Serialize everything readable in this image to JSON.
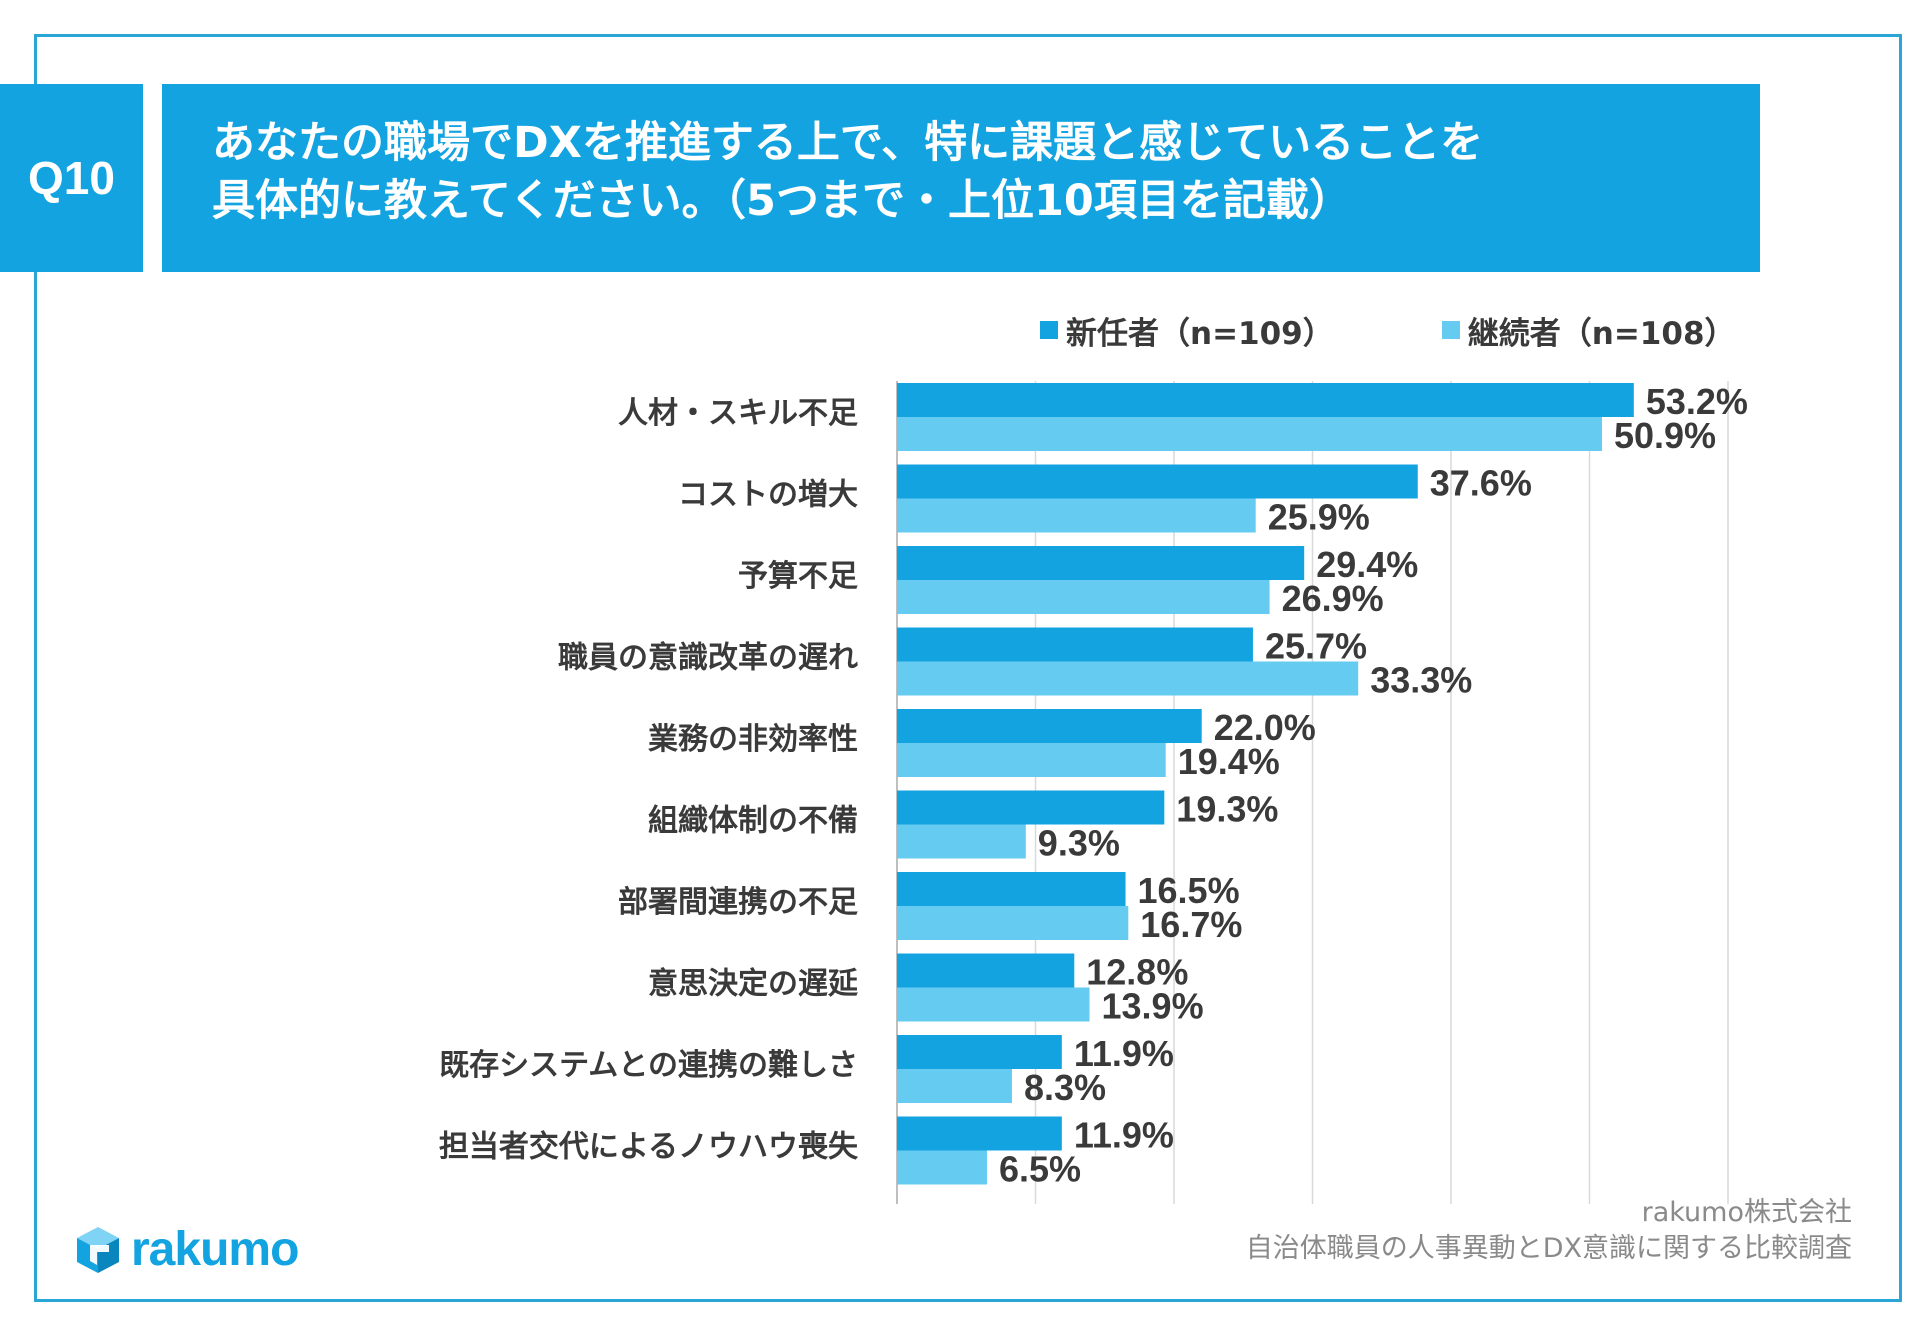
{
  "question": {
    "number": "Q10",
    "title_line1": "あなたの職場でDXを推進する上で、特に課題と感じていることを",
    "title_line2": "具体的に教えてください。（5つまで・上位10項目を記載）"
  },
  "legend": {
    "series1": "新任者（n=109）",
    "series2": "継続者（n=108）"
  },
  "colors": {
    "series1": "#12a3e0",
    "series2": "#66cbf1",
    "frame": "#29a6d6",
    "grid": "#d9d9d9"
  },
  "source": {
    "company": "rakumo株式会社",
    "survey": "自治体職員の人事異動とDX意識に関する比較調査"
  },
  "logo": {
    "text": "rakumo",
    "icon": "cube-logo-icon"
  },
  "chart_data": {
    "type": "bar",
    "orientation": "horizontal",
    "categories": [
      "人材・スキル不足",
      "コストの増大",
      "予算不足",
      "職員の意識改革の遅れ",
      "業務の非効率性",
      "組織体制の不備",
      "部署間連携の不足",
      "意思決定の遅延",
      "既存システムとの連携の難しさ",
      "担当者交代によるノウハウ喪失"
    ],
    "series": [
      {
        "name": "新任者（n=109）",
        "values": [
          53.2,
          37.6,
          29.4,
          25.7,
          22.0,
          19.3,
          16.5,
          12.8,
          11.9,
          11.9
        ],
        "labels": [
          "53.2%",
          "37.6%",
          "29.4%",
          "25.7%",
          "22.0%",
          "19.3%",
          "16.5%",
          "12.8%",
          "11.9%",
          "11.9%"
        ]
      },
      {
        "name": "継続者（n=108）",
        "values": [
          50.9,
          25.9,
          26.9,
          33.3,
          19.4,
          9.3,
          16.7,
          13.9,
          8.3,
          6.5
        ],
        "labels": [
          "50.9%",
          "25.9%",
          "26.9%",
          "33.3%",
          "19.4%",
          "9.3%",
          "16.7%",
          "13.9%",
          "8.3%",
          "6.5%"
        ]
      }
    ],
    "xlim": [
      0,
      60
    ],
    "grid": true,
    "gridlines": [
      0,
      10,
      20,
      30,
      40,
      50,
      60
    ],
    "legend_position": "top-right"
  }
}
